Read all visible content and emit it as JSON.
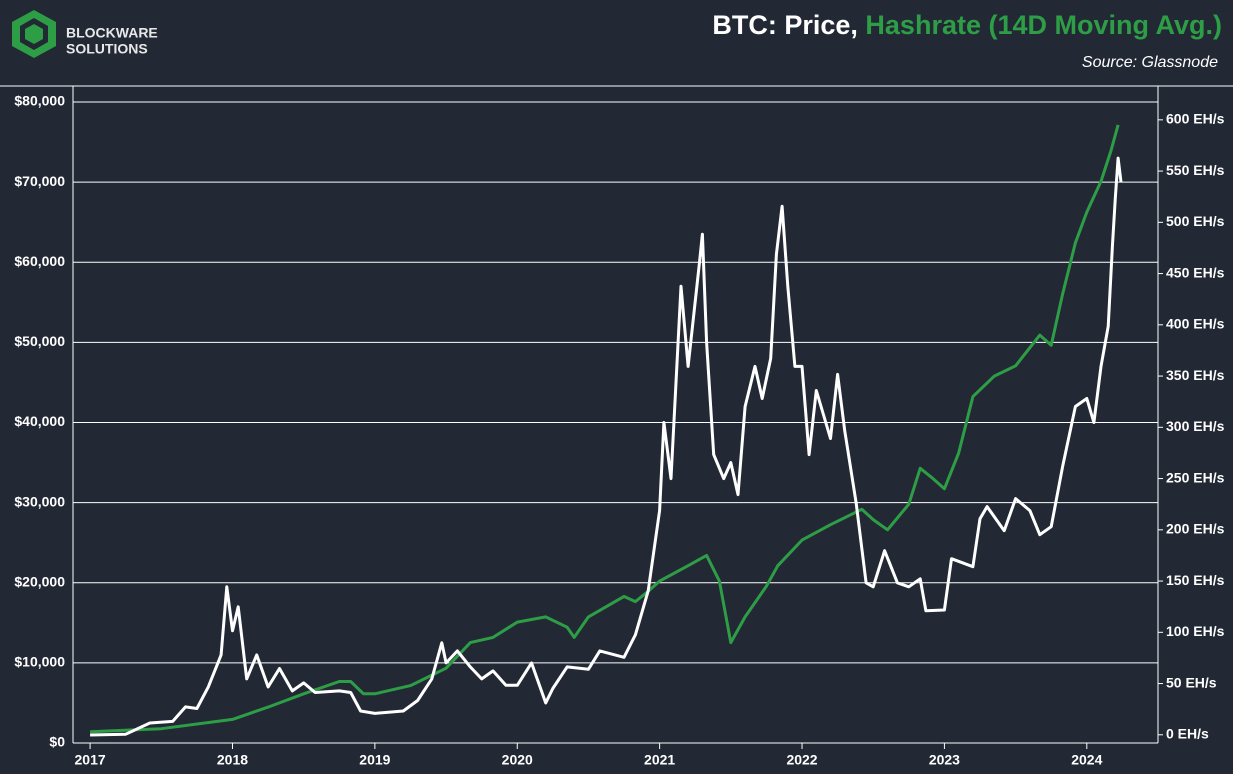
{
  "chart_data": {
    "type": "line",
    "logo": [
      "BLOCKWARE",
      "SOLUTIONS"
    ],
    "title": [
      "BTC: Price,",
      "Hashrate (14D Moving Avg.)"
    ],
    "subtitle": "Source: Glassnode",
    "xlim": [
      2016.88,
      2024.5
    ],
    "xticks": [
      2017,
      2018,
      2019,
      2020,
      2021,
      2022,
      2023,
      2024
    ],
    "ylim": [
      0,
      82000
    ],
    "yticks": [
      {
        "value": 0,
        "label": "$0"
      },
      {
        "value": 10000,
        "label": "$10,000"
      },
      {
        "value": 20000,
        "label": "$20,000"
      },
      {
        "value": 30000,
        "label": "$30,000"
      },
      {
        "value": 40000,
        "label": "$40,000"
      },
      {
        "value": 50000,
        "label": "$50,000"
      },
      {
        "value": 60000,
        "label": "$60,000"
      },
      {
        "value": 70000,
        "label": "$70,000"
      },
      {
        "value": 80000,
        "label": "$80,000"
      }
    ],
    "y2lim": [
      -8,
      633
    ],
    "y2ticks": [
      {
        "value": 0,
        "label": "0 EH/s"
      },
      {
        "value": 50,
        "label": "50 EH/s"
      },
      {
        "value": 100,
        "label": "100 EH/s"
      },
      {
        "value": 150,
        "label": "150 EH/s"
      },
      {
        "value": 200,
        "label": "200 EH/s"
      },
      {
        "value": 250,
        "label": "250 EH/s"
      },
      {
        "value": 300,
        "label": "300 EH/s"
      },
      {
        "value": 350,
        "label": "350 EH/s"
      },
      {
        "value": 400,
        "label": "400 EH/s"
      },
      {
        "value": 450,
        "label": "450 EH/s"
      },
      {
        "value": 500,
        "label": "500 EH/s"
      },
      {
        "value": 550,
        "label": "550 EH/s"
      },
      {
        "value": 600,
        "label": "600 EH/s"
      }
    ],
    "grid": true,
    "series": [
      {
        "color": "#ffffff",
        "axis": "y",
        "x": [
          2017.0,
          2017.25,
          2017.42,
          2017.58,
          2017.67,
          2017.75,
          2017.83,
          2017.92,
          2017.96,
          2018.0,
          2018.04,
          2018.1,
          2018.17,
          2018.25,
          2018.33,
          2018.42,
          2018.5,
          2018.58,
          2018.75,
          2018.83,
          2018.9,
          2019.0,
          2019.2,
          2019.3,
          2019.4,
          2019.47,
          2019.5,
          2019.58,
          2019.67,
          2019.75,
          2019.83,
          2019.92,
          2020.0,
          2020.1,
          2020.2,
          2020.25,
          2020.35,
          2020.5,
          2020.58,
          2020.75,
          2020.83,
          2020.92,
          2021.0,
          2021.03,
          2021.08,
          2021.15,
          2021.2,
          2021.28,
          2021.3,
          2021.33,
          2021.38,
          2021.45,
          2021.5,
          2021.55,
          2021.6,
          2021.67,
          2021.72,
          2021.78,
          2021.82,
          2021.86,
          2021.9,
          2021.95,
          2022.0,
          2022.05,
          2022.1,
          2022.2,
          2022.25,
          2022.3,
          2022.38,
          2022.45,
          2022.5,
          2022.58,
          2022.67,
          2022.75,
          2022.83,
          2022.87,
          2023.0,
          2023.05,
          2023.2,
          2023.25,
          2023.3,
          2023.42,
          2023.5,
          2023.6,
          2023.67,
          2023.75,
          2023.83,
          2023.92,
          2024.0,
          2024.05,
          2024.1,
          2024.15,
          2024.18,
          2024.2,
          2024.22,
          2024.24
        ],
        "values": [
          1000,
          1100,
          2500,
          2700,
          4500,
          4300,
          7000,
          11000,
          19500,
          14000,
          17000,
          8000,
          11000,
          7000,
          9300,
          6500,
          7500,
          6300,
          6500,
          6300,
          4000,
          3700,
          4000,
          5300,
          8000,
          12500,
          10000,
          11500,
          9500,
          8000,
          9000,
          7200,
          7200,
          10000,
          5000,
          6800,
          9500,
          9200,
          11500,
          10700,
          13500,
          19000,
          29000,
          40000,
          33000,
          57000,
          47000,
          60000,
          63500,
          50000,
          36000,
          33000,
          35000,
          31000,
          42000,
          47000,
          43000,
          48000,
          61000,
          67000,
          57000,
          47000,
          47000,
          36000,
          44000,
          38000,
          46000,
          39000,
          30000,
          20000,
          19500,
          24000,
          20000,
          19500,
          20500,
          16500,
          16600,
          23000,
          22000,
          28000,
          29500,
          26500,
          30500,
          29000,
          26000,
          27000,
          34500,
          42000,
          43000,
          40000,
          47000,
          52000,
          62000,
          68000,
          73000,
          70000
        ]
      },
      {
        "color": "#2e9e46",
        "axis": "y2",
        "x": [
          2017.0,
          2017.5,
          2018.0,
          2018.25,
          2018.5,
          2018.75,
          2018.83,
          2018.92,
          2019.0,
          2019.25,
          2019.5,
          2019.67,
          2019.83,
          2020.0,
          2020.2,
          2020.35,
          2020.4,
          2020.5,
          2020.75,
          2020.83,
          2020.92,
          2021.0,
          2021.2,
          2021.33,
          2021.42,
          2021.5,
          2021.6,
          2021.75,
          2021.83,
          2022.0,
          2022.2,
          2022.42,
          2022.5,
          2022.6,
          2022.75,
          2022.83,
          2022.92,
          2023.0,
          2023.1,
          2023.2,
          2023.35,
          2023.5,
          2023.67,
          2023.75,
          2023.83,
          2023.92,
          2024.0,
          2024.1,
          2024.17,
          2024.22
        ],
        "values": [
          3,
          6,
          15,
          27,
          40,
          52,
          52,
          40,
          40,
          48,
          65,
          90,
          95,
          110,
          115,
          105,
          95,
          115,
          135,
          130,
          140,
          150,
          165,
          175,
          150,
          90,
          115,
          145,
          165,
          190,
          205,
          220,
          210,
          200,
          225,
          260,
          250,
          240,
          275,
          330,
          350,
          360,
          390,
          380,
          430,
          480,
          510,
          540,
          570,
          595
        ]
      }
    ]
  }
}
